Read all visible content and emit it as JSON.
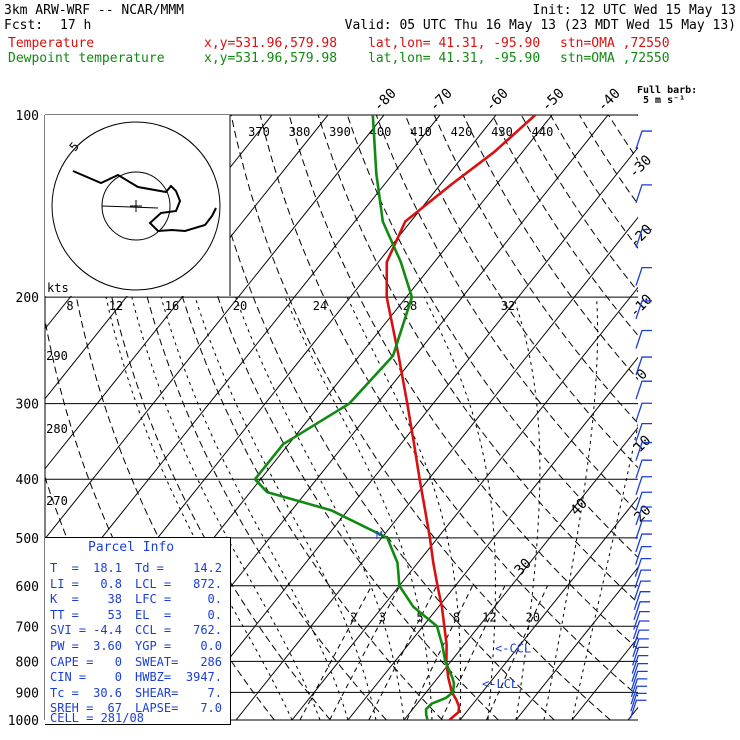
{
  "header": {
    "model": "3km ARW-WRF -- NCAR/MMM",
    "init": "Init: 12 UTC Wed 15 May 13",
    "fcst_label": "Fcst:",
    "fcst_value": "17 h",
    "valid": "Valid: 05 UTC Thu 16 May 13 (23 MDT Wed 15 May 13)",
    "temp_label": "Temperature",
    "dew_label": "Dewpoint temperature",
    "xy": "x,y=531.96,579.98",
    "latlon": "lat,lon= 41.31, -95.90",
    "stn": "stn=OMA ,72550",
    "barb_note_1": "Full barb:",
    "barb_note_2": "5 m s⁻¹"
  },
  "colors": {
    "temperature": "#d81010",
    "dewpoint": "#108a10",
    "grid": "#000000"
  },
  "chart_data": {
    "type": "line",
    "pressure_levels": [
      "100",
      "200",
      "300",
      "400",
      "500",
      "600",
      "700",
      "800",
      "900",
      "1000"
    ],
    "pressure_values": [
      100,
      200,
      300,
      400,
      500,
      600,
      700,
      800,
      900,
      1000
    ],
    "skew_temp_labels": [
      "-80",
      "-70",
      "-60",
      "-50",
      "-40",
      "-30",
      "-20",
      "-10",
      "0",
      "10",
      "20",
      "30",
      "40"
    ],
    "skew_temp_values": [
      -80,
      -70,
      -60,
      -50,
      -40,
      -30,
      -20,
      -10,
      0,
      10,
      20,
      30,
      40
    ],
    "theta_labels": [
      "370",
      "380",
      "390",
      "400",
      "410",
      "420",
      "430",
      "440"
    ],
    "theta_values": [
      370,
      380,
      390,
      400,
      410,
      420,
      430,
      440
    ],
    "dry_adiabat_labels": [
      "290",
      "280",
      "270"
    ],
    "mixing_ratio_labels": [
      "2",
      "3",
      "5",
      "8",
      "12",
      "20"
    ],
    "mixing_ratio_values": [
      2,
      3,
      5,
      8,
      12,
      20
    ],
    "hodograph": {
      "axis_label": "kts",
      "speed_labels": [
        "8",
        "12",
        "16",
        "20",
        "24",
        "28",
        "32"
      ],
      "ring_labels": [
        "5"
      ]
    },
    "series": [
      {
        "name": "Temperature",
        "p": [
          1000,
          970,
          950,
          925,
          900,
          850,
          800,
          750,
          700,
          650,
          600,
          550,
          500,
          450,
          400,
          350,
          300,
          250,
          200,
          175,
          150,
          130,
          115,
          100
        ],
        "t": [
          18.1,
          18.6,
          17.9,
          16.4,
          14.6,
          11.8,
          9.2,
          6.8,
          3.8,
          0.6,
          -3.2,
          -7.2,
          -11.4,
          -16.2,
          -21.6,
          -27.6,
          -34.6,
          -43,
          -53.5,
          -58.5,
          -61,
          -58,
          -55,
          -53
        ]
      },
      {
        "name": "Dewpoint temperature",
        "p": [
          1000,
          980,
          960,
          940,
          920,
          900,
          870,
          850,
          800,
          750,
          700,
          650,
          600,
          550,
          500,
          450,
          420,
          400,
          350,
          300,
          250,
          200,
          175,
          150,
          125,
          100
        ],
        "t": [
          14.2,
          13.2,
          12.4,
          12.6,
          14.3,
          14.8,
          13.7,
          12.5,
          9,
          6,
          2.5,
          -4.5,
          -10,
          -13.6,
          -19,
          -33,
          -47,
          -51,
          -51,
          -45,
          -44,
          -49,
          -56,
          -65,
          -73,
          -82
        ]
      }
    ],
    "annotations": {
      "ccl": "<-CCL",
      "lcl": "<-LCL",
      "mark": "M"
    }
  },
  "parcel": {
    "title": "Parcel Info",
    "rows": [
      [
        "T  =",
        "18.1",
        "Td =",
        "14.2"
      ],
      [
        "LI =",
        "0.8",
        "LCL =",
        "872."
      ],
      [
        "K  =",
        "38",
        "LFC =",
        "0."
      ],
      [
        "TT =",
        "53",
        "EL  =",
        "0."
      ],
      [
        "SVI =",
        "-4.4",
        "CCL =",
        "762."
      ],
      [
        "PW =",
        "3.60",
        "YGP =",
        "0.0"
      ],
      [
        "CAPE =",
        "0",
        "SWEAT=",
        "286"
      ],
      [
        "CIN =",
        "0",
        "HWBZ=",
        "3947."
      ],
      [
        "Tc =",
        "30.6",
        "SHEAR=",
        "7."
      ],
      [
        "SREH =",
        "67",
        "LAPSE=",
        "7.0"
      ]
    ],
    "cell": "CELL = 281/08"
  }
}
